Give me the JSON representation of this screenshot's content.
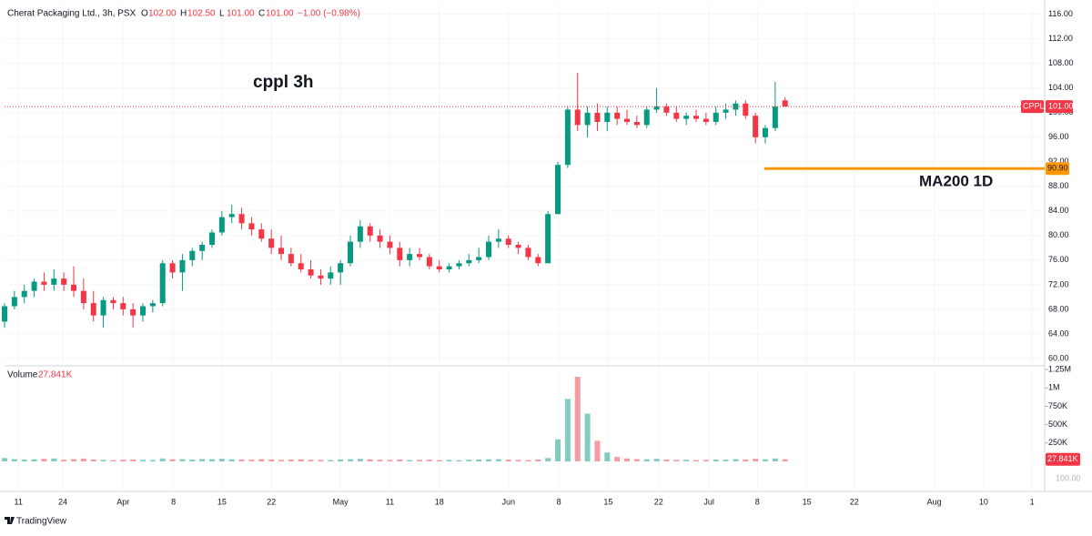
{
  "header": {
    "symbol": "Cherat Packaging Ltd., 3h, PSX",
    "o_label": "O",
    "o": "102.00",
    "h_label": "H",
    "h": "102.50",
    "l_label": "L",
    "l": "101.00",
    "c_label": "C",
    "c": "101.00",
    "change": "−1.00 (−0.98%)"
  },
  "footer": {
    "brand": "TradingView"
  },
  "chart_data": {
    "type": "candlestick",
    "annotations": {
      "title": "cppl 3h",
      "ma_label": "MA200 1D"
    },
    "ma_line": {
      "value": 90.9,
      "label": "90.90",
      "from_x": 76.9,
      "color": "#ff9800"
    },
    "last_price": {
      "value": 101,
      "label": "101.00",
      "symbol": "CPPL"
    },
    "up_color": "#089981",
    "down_color": "#f23645",
    "xlim": [
      0,
      105
    ],
    "ylim": [
      58.8,
      117.6
    ],
    "xticks": [
      {
        "value": 1.4,
        "label": "11"
      },
      {
        "value": 5.9,
        "label": "24"
      },
      {
        "value": 12,
        "label": "Apr"
      },
      {
        "value": 17.1,
        "label": "8"
      },
      {
        "value": 22,
        "label": "15"
      },
      {
        "value": 27,
        "label": "22"
      },
      {
        "value": 34,
        "label": "May"
      },
      {
        "value": 39,
        "label": "11"
      },
      {
        "value": 44,
        "label": "18"
      },
      {
        "value": 51,
        "label": "Jun"
      },
      {
        "value": 56.1,
        "label": "8"
      },
      {
        "value": 61.1,
        "label": "15"
      },
      {
        "value": 66.2,
        "label": "22"
      },
      {
        "value": 71.3,
        "label": "Jul"
      },
      {
        "value": 76.2,
        "label": "8"
      },
      {
        "value": 81.2,
        "label": "15"
      },
      {
        "value": 86,
        "label": "22"
      },
      {
        "value": 94.1,
        "label": "Aug"
      },
      {
        "value": 99.1,
        "label": "10"
      },
      {
        "value": 104,
        "label": "1"
      }
    ],
    "yticks": [
      {
        "value": 60,
        "label": "60.00"
      },
      {
        "value": 64,
        "label": "64.00"
      },
      {
        "value": 68,
        "label": "68.00"
      },
      {
        "value": 72,
        "label": "72.00"
      },
      {
        "value": 76,
        "label": "76.00"
      },
      {
        "value": 80,
        "label": "80.00"
      },
      {
        "value": 84,
        "label": "84.00"
      },
      {
        "value": 88,
        "label": "88.00"
      },
      {
        "value": 92,
        "label": "92.00"
      },
      {
        "value": 96,
        "label": "96.00"
      },
      {
        "value": 100,
        "label": "100.00"
      },
      {
        "value": 104,
        "label": "104.00"
      },
      {
        "value": 108,
        "label": "108.00"
      },
      {
        "value": 112,
        "label": "112.00"
      },
      {
        "value": 116,
        "label": "116.00"
      }
    ],
    "volume_title": "Volume",
    "volume_last": {
      "value": 27841,
      "label": "27.841K"
    },
    "vlim": [
      0,
      1300000
    ],
    "vticks": [
      {
        "value": 250000,
        "label": "250K"
      },
      {
        "value": 500000,
        "label": "500K"
      },
      {
        "value": 750000,
        "label": "750K"
      },
      {
        "value": 1000000,
        "label": "1M"
      },
      {
        "value": 1250000,
        "label": "1.25M"
      }
    ],
    "volume_bottom_label": "100.00",
    "x": [
      0,
      1,
      2,
      3,
      4,
      5,
      6,
      7,
      8,
      9,
      10,
      11,
      12,
      13,
      14,
      15,
      16,
      17,
      18,
      19,
      20,
      21,
      22,
      23,
      24,
      25,
      26,
      27,
      28,
      29,
      30,
      31,
      32,
      33,
      34,
      35,
      36,
      37,
      38,
      39,
      40,
      41,
      42,
      43,
      44,
      45,
      46,
      47,
      48,
      49,
      50,
      51,
      52,
      53,
      54,
      55,
      56,
      57,
      58,
      59,
      60,
      61,
      62,
      63,
      64,
      65,
      66,
      67,
      68,
      69,
      70,
      71,
      72,
      73,
      74,
      75,
      76,
      77,
      78,
      79
    ],
    "open": [
      66,
      68.5,
      70,
      71,
      72.5,
      72,
      73,
      72,
      71,
      69,
      67,
      69.5,
      69,
      68,
      67,
      68.5,
      69,
      75.5,
      74,
      76,
      77.5,
      78.5,
      80.5,
      83,
      83.5,
      82,
      81,
      79.5,
      78,
      77,
      75.5,
      74.5,
      73.5,
      73,
      74,
      75.5,
      79,
      81.5,
      80,
      79,
      78,
      76,
      77,
      76.5,
      75,
      74.5,
      75,
      75.5,
      76,
      76.5,
      79,
      79.5,
      78.5,
      78,
      76.5,
      75.5,
      83.5,
      91.5,
      100.5,
      98,
      100,
      98.5,
      100,
      99,
      98.5,
      98,
      100.5,
      101,
      100,
      99,
      99.5,
      99,
      98.5,
      100,
      100.5,
      101.5,
      99.5,
      96,
      97.5,
      102
    ],
    "high": [
      69,
      71,
      72,
      73,
      74,
      74.5,
      74,
      75,
      73,
      71,
      70,
      70,
      70,
      69,
      69,
      69.5,
      76,
      76,
      77,
      78,
      79,
      81,
      84,
      85,
      84.5,
      83,
      82,
      81,
      80,
      78,
      77,
      76,
      74.5,
      75,
      76,
      80,
      82.5,
      82,
      81,
      80,
      79,
      78,
      78,
      77,
      76,
      75.5,
      76,
      77,
      78,
      80,
      81,
      80,
      79,
      78.5,
      77,
      84,
      92,
      101,
      106.5,
      101,
      101.5,
      101,
      101,
      100.5,
      99.5,
      101,
      104,
      101.5,
      101,
      100,
      100.5,
      100,
      101,
      101.5,
      102,
      102,
      100,
      98,
      105,
      102.5
    ],
    "low": [
      65,
      68,
      69,
      70,
      71,
      71,
      71,
      70,
      68,
      66,
      65,
      68,
      67,
      65,
      66,
      67.5,
      68.5,
      73,
      71,
      75,
      76,
      78,
      80,
      82,
      81,
      80,
      79,
      77,
      76,
      75,
      74,
      73,
      72,
      72,
      72,
      75,
      78,
      79,
      78,
      77,
      75,
      75,
      76,
      74.5,
      74,
      74,
      74.5,
      75,
      75.5,
      76,
      78,
      78,
      77,
      76,
      75,
      75.5,
      83.5,
      91,
      97,
      96,
      97,
      97,
      98,
      98,
      97.5,
      97.5,
      100,
      99.5,
      98.5,
      98,
      98.5,
      98,
      98,
      99,
      99.5,
      99,
      95,
      95,
      97,
      101
    ],
    "close": [
      68.5,
      70,
      71,
      72.5,
      72,
      73,
      72,
      71,
      69,
      67,
      69.5,
      69,
      68,
      67,
      68.5,
      69,
      75.5,
      74,
      76,
      77.5,
      78.5,
      80.5,
      83,
      83.5,
      82,
      81,
      79.5,
      78,
      77,
      75.5,
      74.5,
      73.5,
      73,
      74,
      75.5,
      79,
      81.5,
      80,
      79,
      78,
      76,
      77,
      76.5,
      75,
      74.5,
      75,
      75.5,
      76,
      76.5,
      79,
      79.5,
      78.5,
      78,
      76.5,
      75.5,
      83.5,
      91.5,
      100.5,
      98,
      100,
      98.5,
      100,
      99,
      98.5,
      98,
      100.5,
      101,
      100,
      99,
      99.5,
      99,
      98.5,
      100,
      100.5,
      101.5,
      99.5,
      96,
      97.5,
      101,
      101
    ],
    "volume": [
      45000,
      30000,
      25000,
      28000,
      35000,
      40000,
      22000,
      30000,
      38000,
      25000,
      20000,
      18000,
      22000,
      25000,
      20000,
      18000,
      40000,
      28000,
      30000,
      25000,
      32000,
      30000,
      35000,
      28000,
      26000,
      22000,
      30000,
      25000,
      20000,
      24000,
      28000,
      22000,
      20000,
      18000,
      26000,
      30000,
      35000,
      28000,
      22000,
      20000,
      25000,
      18000,
      20000,
      22000,
      18000,
      20000,
      16000,
      22000,
      25000,
      28000,
      30000,
      24000,
      20000,
      18000,
      26000,
      45000,
      300000,
      850000,
      1150000,
      650000,
      280000,
      120000,
      60000,
      40000,
      30000,
      28000,
      35000,
      25000,
      20000,
      22000,
      18000,
      20000,
      25000,
      22000,
      30000,
      26000,
      35000,
      28000,
      40000,
      27841
    ]
  }
}
